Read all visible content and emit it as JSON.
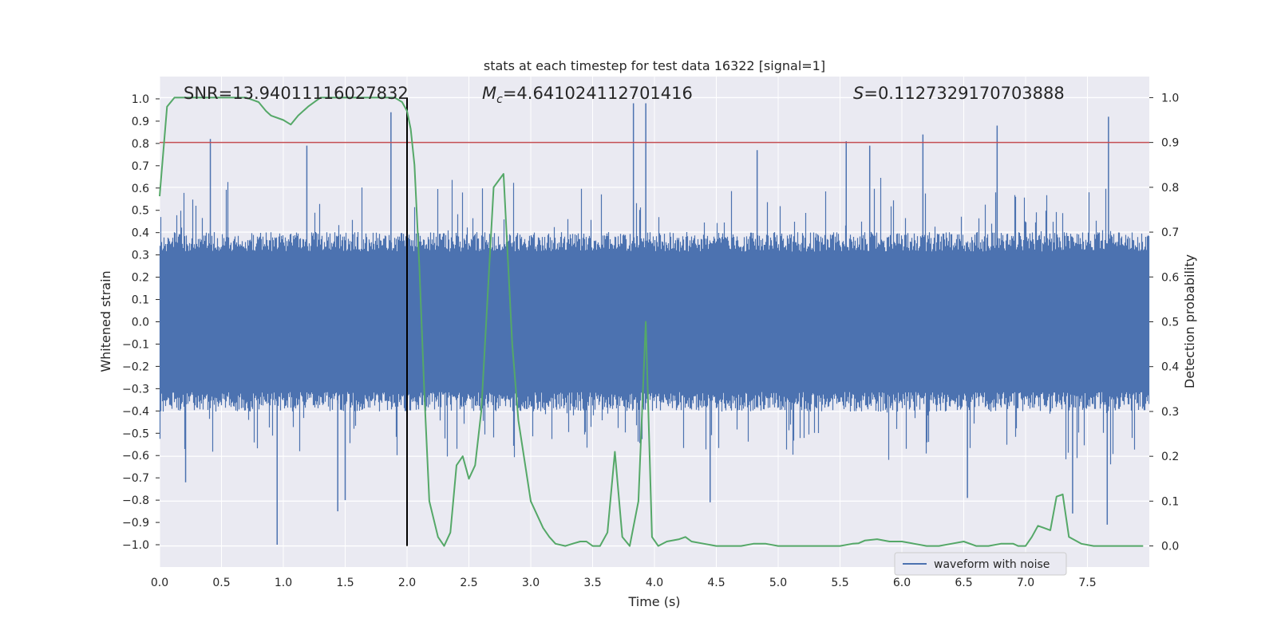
{
  "chart_data": {
    "type": "line",
    "title": "stats at each timestep for test data 16322 [signal=1]",
    "xlabel": "Time (s)",
    "ylabel": "Whitened strain",
    "y2label": "Detection probability",
    "xlim": [
      0.0,
      8.0
    ],
    "ylim": [
      -1.1,
      1.1
    ],
    "y2lim": [
      -0.047,
      1.047
    ],
    "grid": true,
    "legend_position": "lower-right",
    "x_ticks": [
      "0.0",
      "0.5",
      "1.0",
      "1.5",
      "2.0",
      "2.5",
      "3.0",
      "3.5",
      "4.0",
      "4.5",
      "5.0",
      "5.5",
      "6.0",
      "6.5",
      "7.0",
      "7.5"
    ],
    "y_ticks": [
      "1.0",
      "0.9",
      "0.8",
      "0.7",
      "0.6",
      "0.5",
      "0.4",
      "0.3",
      "0.2",
      "0.1",
      "0.0",
      "−0.1",
      "−0.2",
      "−0.3",
      "−0.4",
      "−0.5",
      "−0.6",
      "−0.7",
      "−0.8",
      "−0.9",
      "−1.0"
    ],
    "y2_ticks": [
      "1.0",
      "0.9",
      "0.8",
      "0.7",
      "0.6",
      "0.5",
      "0.4",
      "0.3",
      "0.2",
      "0.1",
      "0.0"
    ],
    "annotations": {
      "snr": "SNR=13.94011116027832",
      "mc_symbol": "M",
      "mc_sub": "c",
      "mc_value": "=4.641024112701416",
      "s_symbol": "S",
      "s_value": "=0.1127329170703888"
    },
    "vertical_line_x": 2.0,
    "threshold_y2": 0.9,
    "colors": {
      "waveform": "#4c72b0",
      "probability": "#55a868",
      "threshold": "#c44e52",
      "marker": "#000000",
      "background": "#eaeaf2",
      "grid": "#ffffff"
    },
    "series": [
      {
        "name": "waveform with noise",
        "kind": "noise-band",
        "typical_amplitude": 0.35,
        "peaks": [
          {
            "x": 0.41,
            "y": 0.82
          },
          {
            "x": 1.19,
            "y": 0.79
          },
          {
            "x": 1.87,
            "y": 0.94
          },
          {
            "x": 3.83,
            "y": 0.98
          },
          {
            "x": 3.93,
            "y": 0.98
          },
          {
            "x": 4.83,
            "y": 0.77
          },
          {
            "x": 5.55,
            "y": 0.81
          },
          {
            "x": 5.74,
            "y": 0.79
          },
          {
            "x": 6.17,
            "y": 0.84
          },
          {
            "x": 6.77,
            "y": 0.88
          },
          {
            "x": 7.67,
            "y": 0.92
          }
        ],
        "troughs": [
          {
            "x": 0.21,
            "y": -0.72
          },
          {
            "x": 0.95,
            "y": -1.0
          },
          {
            "x": 1.5,
            "y": -0.8
          },
          {
            "x": 1.44,
            "y": -0.85
          },
          {
            "x": 4.45,
            "y": -0.81
          },
          {
            "x": 6.53,
            "y": -0.79
          },
          {
            "x": 7.38,
            "y": -0.86
          },
          {
            "x": 7.66,
            "y": -0.91
          }
        ]
      },
      {
        "name": "",
        "axis": "right",
        "x": [
          0.0,
          0.06,
          0.12,
          0.2,
          0.3,
          0.4,
          0.5,
          0.6,
          0.7,
          0.8,
          0.86,
          0.9,
          1.0,
          1.06,
          1.12,
          1.2,
          1.3,
          1.4,
          1.5,
          1.6,
          1.7,
          1.8,
          1.9,
          1.96,
          2.0,
          2.03,
          2.06,
          2.1,
          2.14,
          2.18,
          2.25,
          2.3,
          2.35,
          2.4,
          2.45,
          2.5,
          2.55,
          2.6,
          2.7,
          2.78,
          2.85,
          2.9,
          3.0,
          3.1,
          3.15,
          3.2,
          3.28,
          3.35,
          3.4,
          3.45,
          3.5,
          3.56,
          3.62,
          3.68,
          3.74,
          3.8,
          3.87,
          3.93,
          3.98,
          4.03,
          4.1,
          4.2,
          4.25,
          4.3,
          4.4,
          4.5,
          4.6,
          4.7,
          4.8,
          4.9,
          5.0,
          5.1,
          5.2,
          5.3,
          5.4,
          5.5,
          5.6,
          5.65,
          5.7,
          5.8,
          5.9,
          6.0,
          6.1,
          6.2,
          6.3,
          6.4,
          6.5,
          6.6,
          6.7,
          6.8,
          6.9,
          6.94,
          7.0,
          7.05,
          7.1,
          7.15,
          7.2,
          7.25,
          7.3,
          7.35,
          7.45,
          7.55,
          7.65,
          7.75,
          7.85,
          7.95
        ],
        "values": [
          0.78,
          0.98,
          1.0,
          1.0,
          1.0,
          1.0,
          1.0,
          1.0,
          1.0,
          0.99,
          0.97,
          0.96,
          0.95,
          0.94,
          0.96,
          0.98,
          1.0,
          1.0,
          1.0,
          1.0,
          1.0,
          1.0,
          1.0,
          0.99,
          0.97,
          0.93,
          0.85,
          0.62,
          0.34,
          0.1,
          0.02,
          0.0,
          0.03,
          0.18,
          0.2,
          0.15,
          0.18,
          0.3,
          0.8,
          0.83,
          0.45,
          0.28,
          0.1,
          0.04,
          0.02,
          0.005,
          0.0,
          0.006,
          0.01,
          0.01,
          0.0,
          0.0,
          0.03,
          0.21,
          0.02,
          0.0,
          0.1,
          0.5,
          0.02,
          0.0,
          0.01,
          0.015,
          0.02,
          0.01,
          0.005,
          0.0,
          0.0,
          0.0,
          0.005,
          0.005,
          0.0,
          0.0,
          0.0,
          0.0,
          0.0,
          0.0,
          0.005,
          0.006,
          0.012,
          0.015,
          0.01,
          0.01,
          0.005,
          0.0,
          0.0,
          0.005,
          0.01,
          0.0,
          0.0,
          0.005,
          0.005,
          0.0,
          0.0,
          0.02,
          0.045,
          0.04,
          0.035,
          0.11,
          0.115,
          0.02,
          0.005,
          0.0,
          0.0,
          0.0,
          0.0,
          0.0
        ]
      }
    ]
  }
}
